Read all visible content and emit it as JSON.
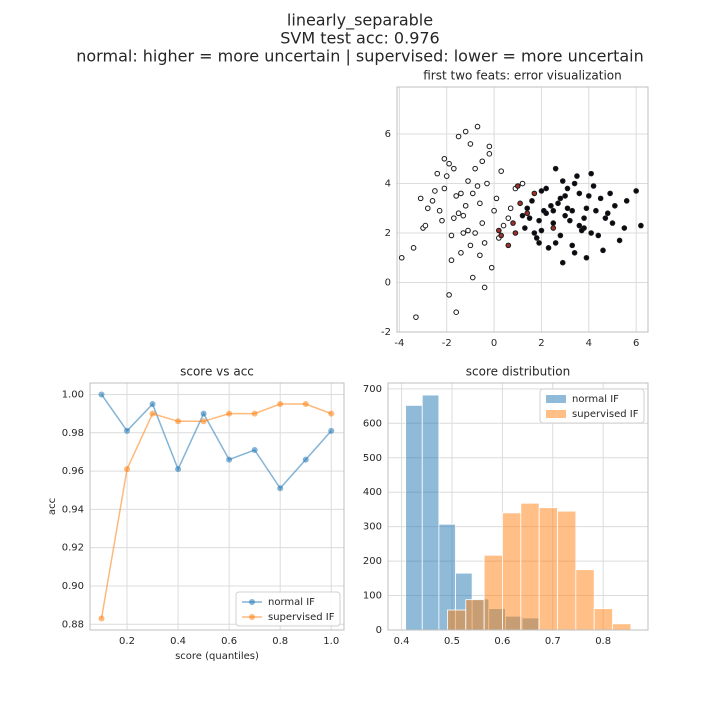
{
  "suptitle": [
    "linearly_separable",
    "SVM test acc: 0.976",
    "normal: higher = more uncertain | supervised: lower = more uncertain"
  ],
  "chart_data": [
    {
      "type": "scatter",
      "title": "first two feats: error visualization",
      "xlim": [
        -4.1,
        6.5
      ],
      "ylim": [
        -2,
        7.9
      ],
      "xticks": [
        -4,
        -2,
        0,
        2,
        4,
        6
      ],
      "yticks": [
        -2,
        0,
        2,
        4,
        6
      ],
      "grid": true,
      "series": [
        {
          "color": "#ffffff",
          "x": [
            -1.2,
            -0.5,
            -2.1,
            0.3,
            -1.8,
            -0.9,
            -1.5,
            -0.2,
            -2.6,
            -1.1,
            0.6,
            -1.4,
            -0.7,
            -3.0,
            -1.9,
            0.1,
            -0.4,
            -2.3,
            -1.0,
            -1.6,
            0.9,
            -0.8,
            -2.0,
            -1.3,
            -0.1,
            -2.8,
            -1.7,
            0.4,
            -0.6,
            -1.2,
            -3.4,
            -2.2,
            -0.3,
            -1.5,
            0.2,
            -0.9,
            -2.5,
            -1.1,
            -0.5,
            -1.8,
            -3.9,
            -3.3,
            -1.6,
            -0.7,
            1.2,
            -2.4,
            -1.0,
            0.0,
            -1.4,
            -2.9,
            -0.2,
            -1.9,
            -0.8,
            0.7,
            -1.3,
            -2.1,
            -0.6,
            -3.1,
            -1.7,
            -0.4
          ],
          "values": [
            3.1,
            2.4,
            3.8,
            4.5,
            1.9,
            3.6,
            2.8,
            5.2,
            3.3,
            4.1,
            2.6,
            1.2,
            3.9,
            2.2,
            4.8,
            3.4,
            1.6,
            2.9,
            5.6,
            3.5,
            3.8,
            2.0,
            4.3,
            2.7,
            0.6,
            3.0,
            4.6,
            2.3,
            3.2,
            6.1,
            1.4,
            2.5,
            4.0,
            5.9,
            1.8,
            0.2,
            3.7,
            2.1,
            4.9,
            0.9,
            1.0,
            -1.4,
            -1.2,
            6.3,
            4.0,
            4.4,
            1.5,
            2.9,
            3.6,
            2.3,
            5.5,
            -0.5,
            4.6,
            3.0,
            2.0,
            5.0,
            1.1,
            3.4,
            2.6,
            -0.2
          ]
        },
        {
          "color": "#0a0a14",
          "x": [
            3.0,
            2.4,
            3.8,
            1.9,
            4.5,
            2.8,
            3.3,
            1.6,
            4.1,
            2.2,
            3.6,
            5.0,
            2.6,
            1.3,
            3.9,
            2.9,
            4.7,
            2.0,
            3.4,
            5.6,
            2.5,
            3.1,
            1.8,
            4.3,
            3.7,
            2.7,
            5.3,
            1.5,
            3.5,
            4.0,
            2.3,
            3.2,
            6.0,
            2.1,
            4.4,
            3.0,
            1.7,
            4.8,
            2.9,
            3.6,
            2.6,
            5.1,
            3.3,
            1.4,
            4.2,
            2.0,
            3.8,
            6.2,
            2.8,
            4.6,
            1.2,
            3.4,
            2.5,
            5.5,
            3.9,
            2.2,
            4.1,
            1.9,
            3.1,
            4.9
          ],
          "values": [
            2.7,
            3.1,
            2.2,
            2.5,
            3.4,
            1.9,
            2.9,
            3.3,
            2.0,
            2.8,
            3.6,
            2.4,
            1.6,
            2.2,
            3.0,
            4.1,
            2.6,
            3.7,
            1.2,
            3.3,
            2.4,
            3.8,
            1.8,
            2.9,
            2.1,
            3.2,
            1.7,
            2.6,
            4.3,
            3.5,
            1.4,
            2.5,
            3.7,
            2.9,
            1.9,
            3.5,
            2.0,
            2.8,
            0.8,
            2.3,
            4.6,
            3.1,
            1.5,
            3.0,
            3.9,
            2.1,
            2.6,
            2.3,
            3.4,
            1.3,
            2.7,
            4.0,
            2.9,
            2.2,
            1.0,
            3.8,
            4.4,
            1.6,
            3.0,
            3.6
          ]
        },
        {
          "color": "#a0302a",
          "x": [
            0.8,
            1.1,
            0.3,
            1.4,
            0.6,
            1.7,
            0.2,
            1.0,
            2.5,
            0.9
          ],
          "values": [
            2.4,
            3.2,
            1.9,
            2.8,
            1.5,
            3.6,
            2.1,
            3.9,
            2.2,
            2.0
          ]
        }
      ]
    },
    {
      "type": "line",
      "title": "score vs acc",
      "xlabel": "score (quantiles)",
      "ylabel": "acc",
      "xlim": [
        0.055,
        1.05
      ],
      "ylim": [
        0.877,
        1.006
      ],
      "xticks": [
        0.2,
        0.4,
        0.6,
        0.8,
        {
          "value": 1,
          "label": "1.0"
        }
      ],
      "yticks": [
        {
          "value": 0.88,
          "label": "0.88"
        },
        {
          "value": 0.9,
          "label": "0.90"
        },
        {
          "value": 0.92,
          "label": "0.92"
        },
        {
          "value": 0.94,
          "label": "0.94"
        },
        {
          "value": 0.96,
          "label": "0.96"
        },
        {
          "value": 0.98,
          "label": "0.98"
        },
        {
          "value": 1,
          "label": "1.00"
        }
      ],
      "grid": true,
      "legend": "lower-right",
      "x": [
        0.1,
        0.2,
        0.3,
        0.4,
        0.5,
        0.6,
        0.7,
        0.8,
        0.9,
        1.0
      ],
      "series": [
        {
          "name": "normal IF",
          "color": "#1f77b4",
          "values": [
            1.0,
            0.981,
            0.995,
            0.961,
            0.99,
            0.966,
            0.971,
            0.951,
            0.966,
            0.981
          ]
        },
        {
          "name": "supervised IF",
          "color": "#ff7f0e",
          "values": [
            0.883,
            0.961,
            0.99,
            0.986,
            0.986,
            0.99,
            0.99,
            0.995,
            0.995,
            0.99
          ]
        }
      ]
    },
    {
      "type": "histogram",
      "title": "score distribution",
      "xlim": [
        0.373,
        0.889
      ],
      "ylim": [
        0,
        717
      ],
      "xticks": [
        0.4,
        0.5,
        0.6,
        0.7,
        0.8
      ],
      "yticks": [
        0,
        100,
        200,
        300,
        400,
        500,
        600,
        700
      ],
      "grid": true,
      "legend": "upper-right",
      "series": [
        {
          "name": "normal IF",
          "color": "#1f77b4",
          "bins": [
            0.408,
            0.441,
            0.474,
            0.507,
            0.54,
            0.573,
            0.606,
            0.639,
            0.672
          ],
          "values": [
            652,
            682,
            307,
            165,
            90,
            62,
            40,
            35
          ]
        },
        {
          "name": "supervised IF",
          "color": "#ff7f0e",
          "bins": [
            0.491,
            0.5274,
            0.5638,
            0.6002,
            0.6366,
            0.673,
            0.7094,
            0.7458,
            0.7822,
            0.8186,
            0.855
          ],
          "values": [
            58,
            88,
            217,
            340,
            368,
            355,
            345,
            175,
            62,
            18
          ]
        }
      ]
    }
  ]
}
